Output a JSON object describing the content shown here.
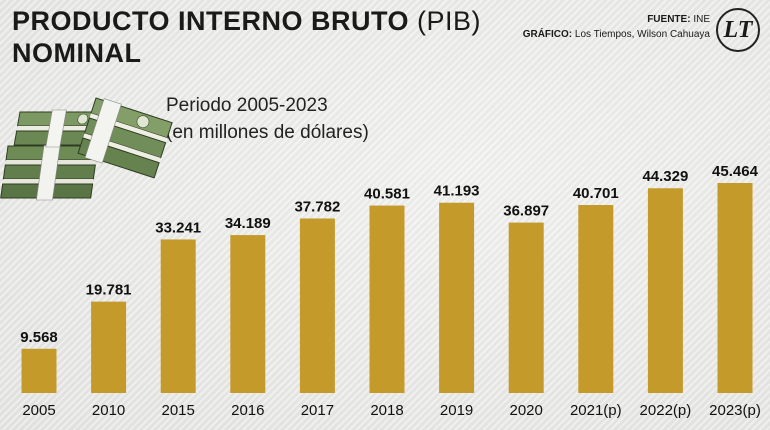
{
  "header": {
    "title_main": "PRODUCTO INTERNO BRUTO",
    "title_suffix": "(PIB)",
    "title_line2": "NOMINAL",
    "source_label": "FUENTE:",
    "source_value": "INE",
    "graphic_label": "GRÁFICO:",
    "graphic_value": "Los Tiempos, Wilson Cahuaya",
    "logo_text": "LT"
  },
  "subtitle": {
    "line1": "Periodo 2005-2023",
    "line2": "(en millones de dólares)"
  },
  "colors": {
    "bar": "#c49a2b",
    "bar_shadow": "#a98323",
    "money_green": "#5f7a4a"
  },
  "chart_data": {
    "type": "bar",
    "categories": [
      "2005",
      "2010",
      "2015",
      "2016",
      "2017",
      "2018",
      "2019",
      "2020",
      "2021(p)",
      "2022(p)",
      "2023(p)"
    ],
    "values": [
      9568,
      19781,
      33241,
      34189,
      37782,
      40581,
      41193,
      36897,
      40701,
      44329,
      45464
    ],
    "value_labels": [
      "9.568",
      "19.781",
      "33.241",
      "34.189",
      "37.782",
      "40.581",
      "41.193",
      "36.897",
      "40.701",
      "44.329",
      "45.464"
    ],
    "ylim": [
      0,
      45464
    ],
    "grid": false,
    "legend": "none"
  }
}
